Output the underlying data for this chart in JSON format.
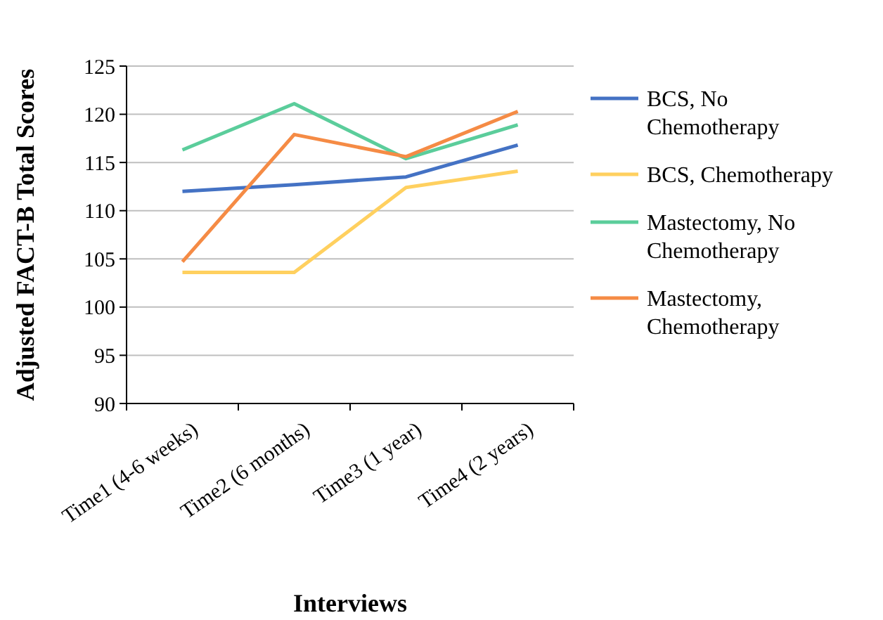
{
  "chart_data": {
    "type": "line",
    "xlabel": "Interviews",
    "ylabel": "Adjusted FACT-B Total Scores",
    "categories": [
      "Time1 (4-6 weeks)",
      "Time2 (6 months)",
      "Time3 (1 year)",
      "Time4 (2 years)"
    ],
    "series": [
      {
        "name": "BCS, No Chemotherapy",
        "color": "#4472c4",
        "values": [
          112.0,
          112.7,
          113.5,
          116.8
        ]
      },
      {
        "name": "BCS, Chemotherapy",
        "color": "#ffd05f",
        "values": [
          103.6,
          103.6,
          112.4,
          114.1
        ]
      },
      {
        "name": "Mastectomy, No Chemotherapy",
        "color": "#5bcd9b",
        "values": [
          116.3,
          121.1,
          115.4,
          118.9
        ]
      },
      {
        "name": "Mastectomy, Chemotherapy",
        "color": "#f58b45",
        "values": [
          104.7,
          117.9,
          115.6,
          120.3
        ]
      }
    ],
    "ylim": [
      90,
      125
    ],
    "yticks": [
      90,
      95,
      100,
      105,
      110,
      115,
      120,
      125
    ],
    "grid": "y",
    "legend": "right",
    "marker": "none",
    "line_style": "solid"
  }
}
